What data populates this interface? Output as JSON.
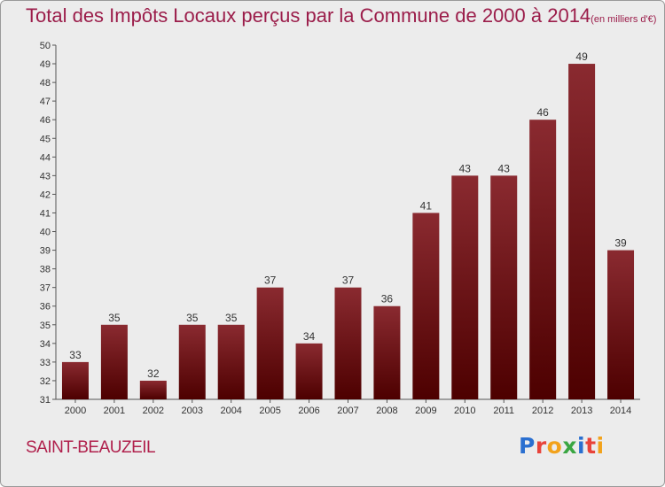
{
  "header": {
    "title": "Total des Impôts Locaux perçus par la Commune de 2000 à 2014",
    "unit": "(en milliers d'€)"
  },
  "footer": {
    "commune": "SAINT-BEAUZEIL",
    "logo_text": "Proxiti"
  },
  "chart_data": {
    "type": "bar",
    "title": "Total des Impôts Locaux perçus par la Commune de 2000 à 2014",
    "subtitle": "(en milliers d'€)",
    "xlabel": "",
    "ylabel": "",
    "categories": [
      "2000",
      "2001",
      "2002",
      "2003",
      "2004",
      "2005",
      "2006",
      "2007",
      "2008",
      "2009",
      "2010",
      "2011",
      "2012",
      "2013",
      "2014"
    ],
    "values": [
      33,
      35,
      32,
      35,
      35,
      37,
      34,
      37,
      36,
      41,
      43,
      43,
      46,
      49,
      39
    ],
    "ylim": [
      31,
      50
    ],
    "yticks": [
      31,
      32,
      33,
      34,
      35,
      36,
      37,
      38,
      39,
      40,
      41,
      42,
      43,
      44,
      45,
      46,
      47,
      48,
      49,
      50
    ],
    "grid": false,
    "bar_color_top": "#8a2a30",
    "bar_color_bottom": "#4d0000"
  }
}
